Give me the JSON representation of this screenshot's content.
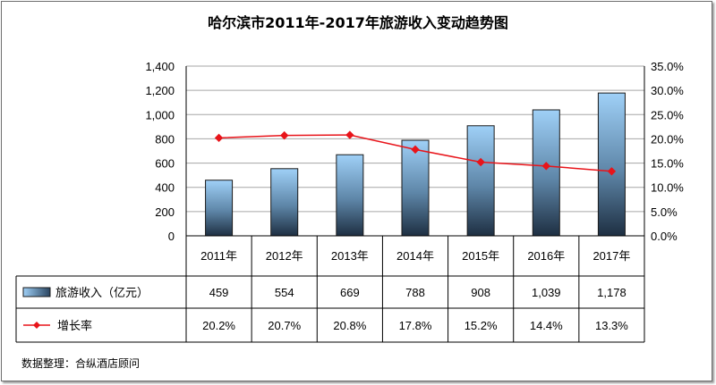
{
  "chart_data": {
    "type": "bar",
    "title": "哈尔滨市2011年-2017年旅游收入变动趋势图",
    "categories": [
      "2011年",
      "2012年",
      "2013年",
      "2014年",
      "2015年",
      "2016年",
      "2017年"
    ],
    "series": [
      {
        "name": "旅游收入（亿元）",
        "type": "bar",
        "axis": "left",
        "values": [
          459,
          554,
          669,
          788,
          908,
          1039,
          1178
        ],
        "display": [
          "459",
          "554",
          "669",
          "788",
          "908",
          "1,039",
          "1,178"
        ]
      },
      {
        "name": "增长率",
        "type": "line",
        "axis": "right",
        "values": [
          20.2,
          20.7,
          20.8,
          17.8,
          15.2,
          14.4,
          13.3
        ],
        "display": [
          "20.2%",
          "20.7%",
          "20.8%",
          "17.8%",
          "15.2%",
          "14.4%",
          "13.3%"
        ]
      }
    ],
    "ylim_left": [
      0,
      1400
    ],
    "yticks_left": [
      "0",
      "200",
      "400",
      "600",
      "800",
      "1,000",
      "1,200",
      "1,400"
    ],
    "ylim_right": [
      0,
      35
    ],
    "yticks_right": [
      "0.0%",
      "5.0%",
      "10.0%",
      "15.0%",
      "20.0%",
      "25.0%",
      "30.0%",
      "35.0%"
    ],
    "grid": true,
    "legend": "data-table",
    "colors": {
      "bar_top": "#9fd0f7",
      "bar_bottom": "#1e2f42",
      "line": "#e8141a",
      "grid": "#a6a6a6"
    }
  },
  "source": "数据整理：合纵酒店顾问"
}
